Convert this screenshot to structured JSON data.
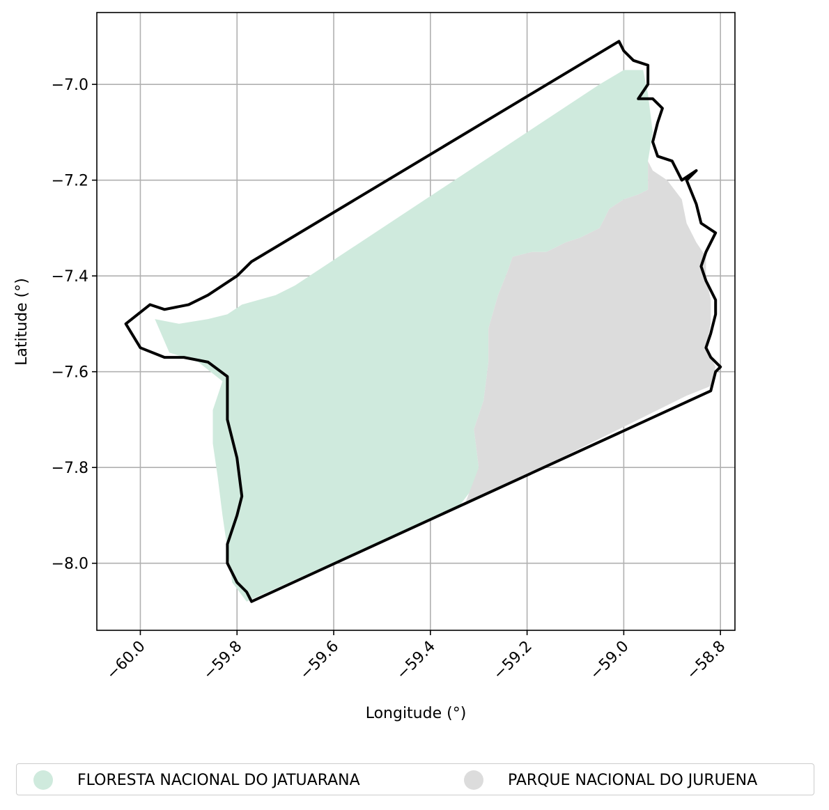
{
  "chart_data": {
    "type": "map",
    "xlabel": "Longitude (°)",
    "ylabel": "Latitude (°)",
    "xlim": [
      -60.09,
      -58.77
    ],
    "ylim": [
      -8.14,
      -6.85
    ],
    "x_ticks": [
      -60.0,
      -59.8,
      -59.6,
      -59.4,
      -59.2,
      -59.0,
      -58.8
    ],
    "x_tick_labels": [
      "−60.0",
      "−59.8",
      "−59.6",
      "−59.4",
      "−59.2",
      "−59.0",
      "−58.8"
    ],
    "y_ticks": [
      -7.0,
      -7.2,
      -7.4,
      -7.6,
      -7.8,
      -8.0
    ],
    "y_tick_labels": [
      "−7.0",
      "−7.2",
      "−7.4",
      "−7.6",
      "−7.8",
      "−8.0"
    ],
    "grid": true,
    "legend_position": "bottom",
    "series": [
      {
        "name": "FLORESTA NACIONAL DO JATUARANA",
        "color": "#cfeadd",
        "polygon": [
          [
            -59.97,
            -7.49
          ],
          [
            -59.92,
            -7.5
          ],
          [
            -59.86,
            -7.49
          ],
          [
            -59.82,
            -7.48
          ],
          [
            -59.79,
            -7.46
          ],
          [
            -59.72,
            -7.44
          ],
          [
            -59.68,
            -7.42
          ],
          [
            -59.38,
            -7.22
          ],
          [
            -59.05,
            -7.0
          ],
          [
            -59.0,
            -6.97
          ],
          [
            -58.96,
            -6.97
          ],
          [
            -58.95,
            -7.02
          ],
          [
            -58.94,
            -7.1
          ],
          [
            -58.95,
            -7.16
          ],
          [
            -58.95,
            -7.22
          ],
          [
            -58.97,
            -7.23
          ],
          [
            -59.0,
            -7.24
          ],
          [
            -59.03,
            -7.26
          ],
          [
            -59.05,
            -7.3
          ],
          [
            -59.09,
            -7.32
          ],
          [
            -59.12,
            -7.33
          ],
          [
            -59.16,
            -7.35
          ],
          [
            -59.19,
            -7.35
          ],
          [
            -59.23,
            -7.36
          ],
          [
            -59.24,
            -7.39
          ],
          [
            -59.26,
            -7.44
          ],
          [
            -59.28,
            -7.51
          ],
          [
            -59.28,
            -7.58
          ],
          [
            -59.29,
            -7.66
          ],
          [
            -59.31,
            -7.72
          ],
          [
            -59.3,
            -7.8
          ],
          [
            -59.31,
            -7.84
          ],
          [
            -59.34,
            -7.88
          ],
          [
            -59.78,
            -8.08
          ],
          [
            -59.81,
            -8.04
          ],
          [
            -59.82,
            -7.97
          ],
          [
            -59.83,
            -7.9
          ],
          [
            -59.84,
            -7.82
          ],
          [
            -59.85,
            -7.75
          ],
          [
            -59.85,
            -7.68
          ],
          [
            -59.83,
            -7.62
          ],
          [
            -59.88,
            -7.58
          ],
          [
            -59.94,
            -7.56
          ]
        ]
      },
      {
        "name": "PARQUE NACIONAL DO JURUENA",
        "color": "#dcdcdc",
        "polygon": [
          [
            -58.95,
            -7.16
          ],
          [
            -58.94,
            -7.18
          ],
          [
            -58.91,
            -7.2
          ],
          [
            -58.88,
            -7.24
          ],
          [
            -58.87,
            -7.29
          ],
          [
            -58.85,
            -7.33
          ],
          [
            -58.83,
            -7.36
          ],
          [
            -58.83,
            -7.4
          ],
          [
            -58.82,
            -7.45
          ],
          [
            -58.82,
            -7.5
          ],
          [
            -58.83,
            -7.55
          ],
          [
            -58.81,
            -7.59
          ],
          [
            -58.82,
            -7.63
          ],
          [
            -58.87,
            -7.65
          ],
          [
            -59.33,
            -7.88
          ],
          [
            -59.3,
            -7.8
          ],
          [
            -59.31,
            -7.72
          ],
          [
            -59.29,
            -7.66
          ],
          [
            -59.28,
            -7.58
          ],
          [
            -59.28,
            -7.51
          ],
          [
            -59.26,
            -7.44
          ],
          [
            -59.24,
            -7.39
          ],
          [
            -59.23,
            -7.36
          ],
          [
            -59.19,
            -7.35
          ],
          [
            -59.16,
            -7.35
          ],
          [
            -59.12,
            -7.33
          ],
          [
            -59.09,
            -7.32
          ],
          [
            -59.05,
            -7.3
          ],
          [
            -59.03,
            -7.26
          ],
          [
            -59.0,
            -7.24
          ],
          [
            -58.97,
            -7.23
          ],
          [
            -58.95,
            -7.22
          ]
        ]
      }
    ],
    "boundary": [
      [
        -59.77,
        -8.08
      ],
      [
        -58.82,
        -7.64
      ],
      [
        -58.81,
        -7.6
      ],
      [
        -58.8,
        -7.59
      ],
      [
        -58.82,
        -7.57
      ],
      [
        -58.83,
        -7.55
      ],
      [
        -58.82,
        -7.52
      ],
      [
        -58.81,
        -7.48
      ],
      [
        -58.81,
        -7.45
      ],
      [
        -58.83,
        -7.41
      ],
      [
        -58.84,
        -7.38
      ],
      [
        -58.83,
        -7.35
      ],
      [
        -58.81,
        -7.31
      ],
      [
        -58.84,
        -7.29
      ],
      [
        -58.85,
        -7.25
      ],
      [
        -58.87,
        -7.2
      ],
      [
        -58.85,
        -7.18
      ],
      [
        -58.88,
        -7.2
      ],
      [
        -58.9,
        -7.16
      ],
      [
        -58.93,
        -7.15
      ],
      [
        -58.94,
        -7.12
      ],
      [
        -58.93,
        -7.08
      ],
      [
        -58.92,
        -7.05
      ],
      [
        -58.94,
        -7.03
      ],
      [
        -58.97,
        -7.03
      ],
      [
        -58.95,
        -7.0
      ],
      [
        -58.95,
        -6.96
      ],
      [
        -58.98,
        -6.95
      ],
      [
        -59.0,
        -6.93
      ],
      [
        -59.01,
        -6.91
      ],
      [
        -59.72,
        -7.34
      ],
      [
        -59.77,
        -7.37
      ],
      [
        -59.8,
        -7.4
      ],
      [
        -59.83,
        -7.42
      ],
      [
        -59.86,
        -7.44
      ],
      [
        -59.9,
        -7.46
      ],
      [
        -59.95,
        -7.47
      ],
      [
        -59.98,
        -7.46
      ],
      [
        -60.03,
        -7.5
      ],
      [
        -60.0,
        -7.55
      ],
      [
        -59.95,
        -7.57
      ],
      [
        -59.91,
        -7.57
      ],
      [
        -59.86,
        -7.58
      ],
      [
        -59.82,
        -7.61
      ],
      [
        -59.82,
        -7.7
      ],
      [
        -59.8,
        -7.78
      ],
      [
        -59.79,
        -7.86
      ],
      [
        -59.8,
        -7.9
      ],
      [
        -59.82,
        -7.96
      ],
      [
        -59.82,
        -8.0
      ],
      [
        -59.8,
        -8.04
      ],
      [
        -59.78,
        -8.06
      ]
    ]
  }
}
